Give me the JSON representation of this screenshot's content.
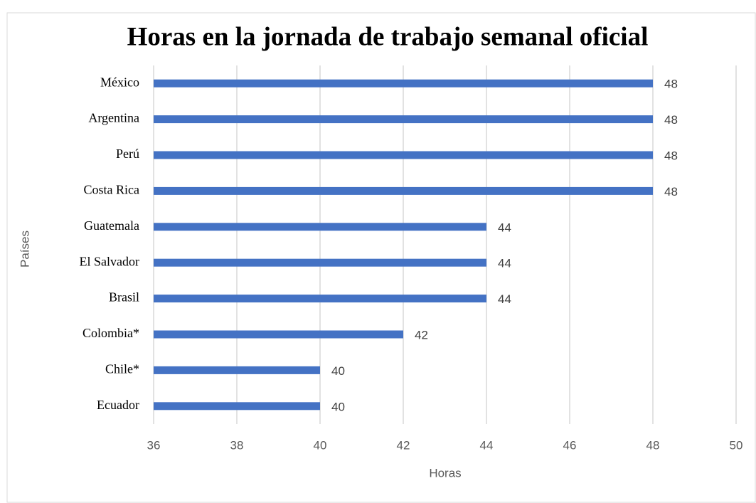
{
  "chart_data": {
    "type": "barh",
    "title": "Horas en la jornada de trabajo semanal oficial",
    "categories": [
      "México",
      "Argentina",
      "Perú",
      "Costa Rica",
      "Guatemala",
      "El Salvador",
      "Brasil",
      "Colombia*",
      "Chile*",
      "Ecuador"
    ],
    "values": [
      48,
      48,
      48,
      48,
      44,
      44,
      44,
      42,
      40,
      40
    ],
    "color": "#4472c4",
    "xlabel": "Horas",
    "ylabel": "Países",
    "xlim": [
      36,
      50
    ],
    "xticks": [
      36,
      38,
      40,
      42,
      44,
      46,
      48,
      50
    ],
    "grid": true
  }
}
